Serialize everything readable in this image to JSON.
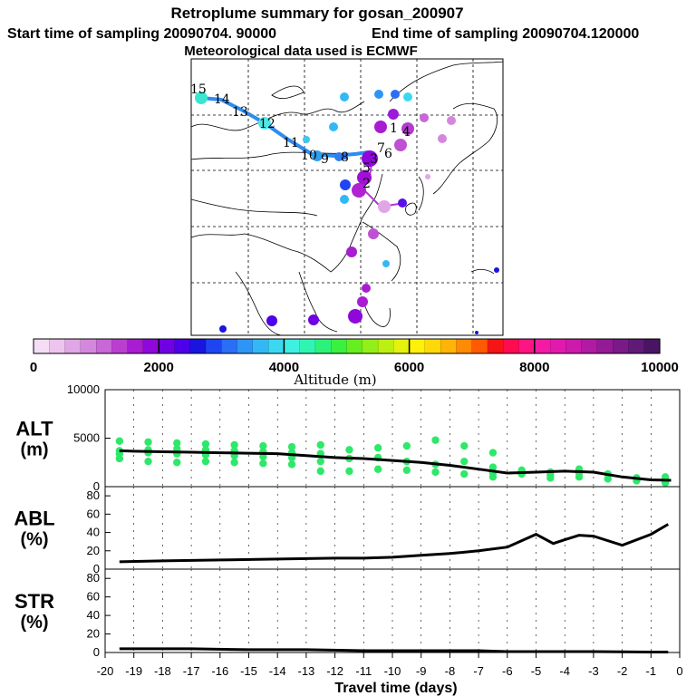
{
  "header": {
    "title": "Retroplume summary for gosan_200907",
    "start_label": "Start time of sampling 20090704. 90000",
    "end_label": "End time of sampling 20090704.120000",
    "met_label": "Meteorological data used is ECMWF"
  },
  "colorbar": {
    "tick_labels": [
      "0",
      "2000",
      "4000",
      "6000",
      "8000",
      "10000"
    ],
    "xlabel": "Altitude (m)",
    "colors": [
      "#f5ddf5",
      "#ecc4ee",
      "#e0a6e6",
      "#d488dd",
      "#c867d6",
      "#ba3fd0",
      "#a81cd2",
      "#8f08db",
      "#7000e4",
      "#4e00ea",
      "#1a14e0",
      "#1f45f2",
      "#2a6ef5",
      "#2e95f5",
      "#34b8f5",
      "#3bd8f2",
      "#3ef0e2",
      "#30f5b0",
      "#2cf27a",
      "#3af040",
      "#66ee20",
      "#92ef18",
      "#bcf012",
      "#e4f20e",
      "#fff00a",
      "#ffd808",
      "#ffb406",
      "#ff8a04",
      "#ff5a02",
      "#f51515",
      "#ff0c50",
      "#ff1484",
      "#f41aa4",
      "#e21aac",
      "#cc1aaa",
      "#b11aa2",
      "#951a96",
      "#7a1a88",
      "#601a76",
      "#4a1464"
    ],
    "vmin": 0,
    "vmax": 10000
  },
  "map_markers": {
    "labels": [
      "15",
      "14",
      "13",
      "12",
      "11",
      "10",
      "9",
      "8",
      "7",
      "6",
      "5",
      "4",
      "3",
      "2",
      "1"
    ]
  },
  "chart_data": [
    {
      "type": "scatter+line",
      "name": "ALT",
      "ylabel_line1": "ALT",
      "ylabel_line2": "(m)",
      "ylim": [
        0,
        10000
      ],
      "yticks": [
        "10000",
        "5000",
        "0"
      ],
      "ytick_values": [
        10000,
        5000,
        0
      ],
      "line": {
        "x": [
          -19.5,
          -19,
          -18,
          -17,
          -16,
          -15,
          -14,
          -13,
          -12,
          -11,
          -10,
          -9,
          -8,
          -7,
          -6,
          -5,
          -4,
          -3,
          -2,
          -1,
          -0.3
        ],
        "y": [
          3700,
          3650,
          3600,
          3550,
          3500,
          3450,
          3400,
          3200,
          3000,
          2900,
          2700,
          2500,
          2200,
          1800,
          1400,
          1500,
          1600,
          1500,
          1000,
          700,
          650
        ]
      },
      "scatter": {
        "color": "#2ee86a",
        "x": [
          -19.5,
          -19.5,
          -19.5,
          -19.5,
          -18.5,
          -18.5,
          -18.5,
          -18.5,
          -17.5,
          -17.5,
          -17.5,
          -17.5,
          -16.5,
          -16.5,
          -16.5,
          -16.5,
          -15.5,
          -15.5,
          -15.5,
          -15.5,
          -14.5,
          -14.5,
          -14.5,
          -14.5,
          -13.5,
          -13.5,
          -13.5,
          -13.5,
          -12.5,
          -12.5,
          -12.5,
          -12.5,
          -11.5,
          -11.5,
          -11.5,
          -10.5,
          -10.5,
          -10.5,
          -9.5,
          -9.5,
          -9.5,
          -8.5,
          -8.5,
          -8.5,
          -7.5,
          -7.5,
          -7.5,
          -6.5,
          -6.5,
          -6.5,
          -6.5,
          -5.5,
          -5.5,
          -4.5,
          -4.5,
          -4.5,
          -3.5,
          -3.5,
          -3.5,
          -2.5,
          -2.5,
          -1.5,
          -1.5,
          -0.5,
          -0.5,
          -0.5
        ],
        "y": [
          4700,
          3700,
          3400,
          2900,
          4600,
          3800,
          3500,
          2600,
          4500,
          3900,
          3400,
          2500,
          4400,
          3800,
          3300,
          2600,
          4300,
          3700,
          3200,
          2500,
          4200,
          3600,
          3100,
          2400,
          4100,
          3500,
          3000,
          2300,
          4300,
          3400,
          2600,
          1600,
          3800,
          2900,
          1600,
          4000,
          3000,
          1800,
          4200,
          2600,
          1700,
          4800,
          2300,
          1500,
          4200,
          2600,
          1300,
          3500,
          2000,
          1400,
          1000,
          1700,
          1300,
          1500,
          1200,
          900,
          1800,
          1400,
          1000,
          1300,
          800,
          900,
          600,
          1000,
          600,
          400
        ]
      },
      "xlim": [
        -20,
        0
      ]
    },
    {
      "type": "line",
      "name": "ABL",
      "ylabel_line1": "ABL",
      "ylabel_line2": "(%)",
      "ylim": [
        0,
        90
      ],
      "yticks": [
        "80",
        "60",
        "40",
        "20",
        "0"
      ],
      "ytick_values": [
        80,
        60,
        40,
        20,
        0
      ],
      "x": [
        -19.5,
        -18,
        -16,
        -14,
        -12,
        -11,
        -10,
        -9,
        -8,
        -7,
        -6,
        -5,
        -4.4,
        -4,
        -3.5,
        -3,
        -2,
        -1,
        -0.4
      ],
      "y": [
        8,
        9,
        10,
        11,
        12,
        12,
        13,
        15,
        17,
        20,
        24,
        38,
        28,
        32,
        37,
        36,
        26,
        38,
        49
      ],
      "xlim": [
        -20,
        0
      ]
    },
    {
      "type": "line",
      "name": "STR",
      "ylabel_line1": "STR",
      "ylabel_line2": "(%)",
      "ylim": [
        0,
        90
      ],
      "yticks": [
        "80",
        "60",
        "40",
        "20",
        "0"
      ],
      "ytick_values": [
        80,
        60,
        40,
        20,
        0
      ],
      "x": [
        -19.5,
        -17,
        -15,
        -13,
        -11,
        -9,
        -7,
        -6,
        -5,
        -3,
        -1,
        -0.4
      ],
      "y": [
        4,
        4,
        3,
        3,
        2,
        2,
        2,
        1,
        1,
        1,
        0.5,
        0.5
      ],
      "xlim": [
        -20,
        0
      ]
    }
  ],
  "x_axis": {
    "ticks": [
      "-20",
      "-19",
      "-18",
      "-17",
      "-16",
      "-15",
      "-14",
      "-13",
      "-12",
      "-11",
      "-10",
      "-9",
      "-8",
      "-7",
      "-6",
      "-5",
      "-4",
      "-3",
      "-2",
      "-1",
      "0"
    ],
    "label": "Travel time (days)"
  }
}
